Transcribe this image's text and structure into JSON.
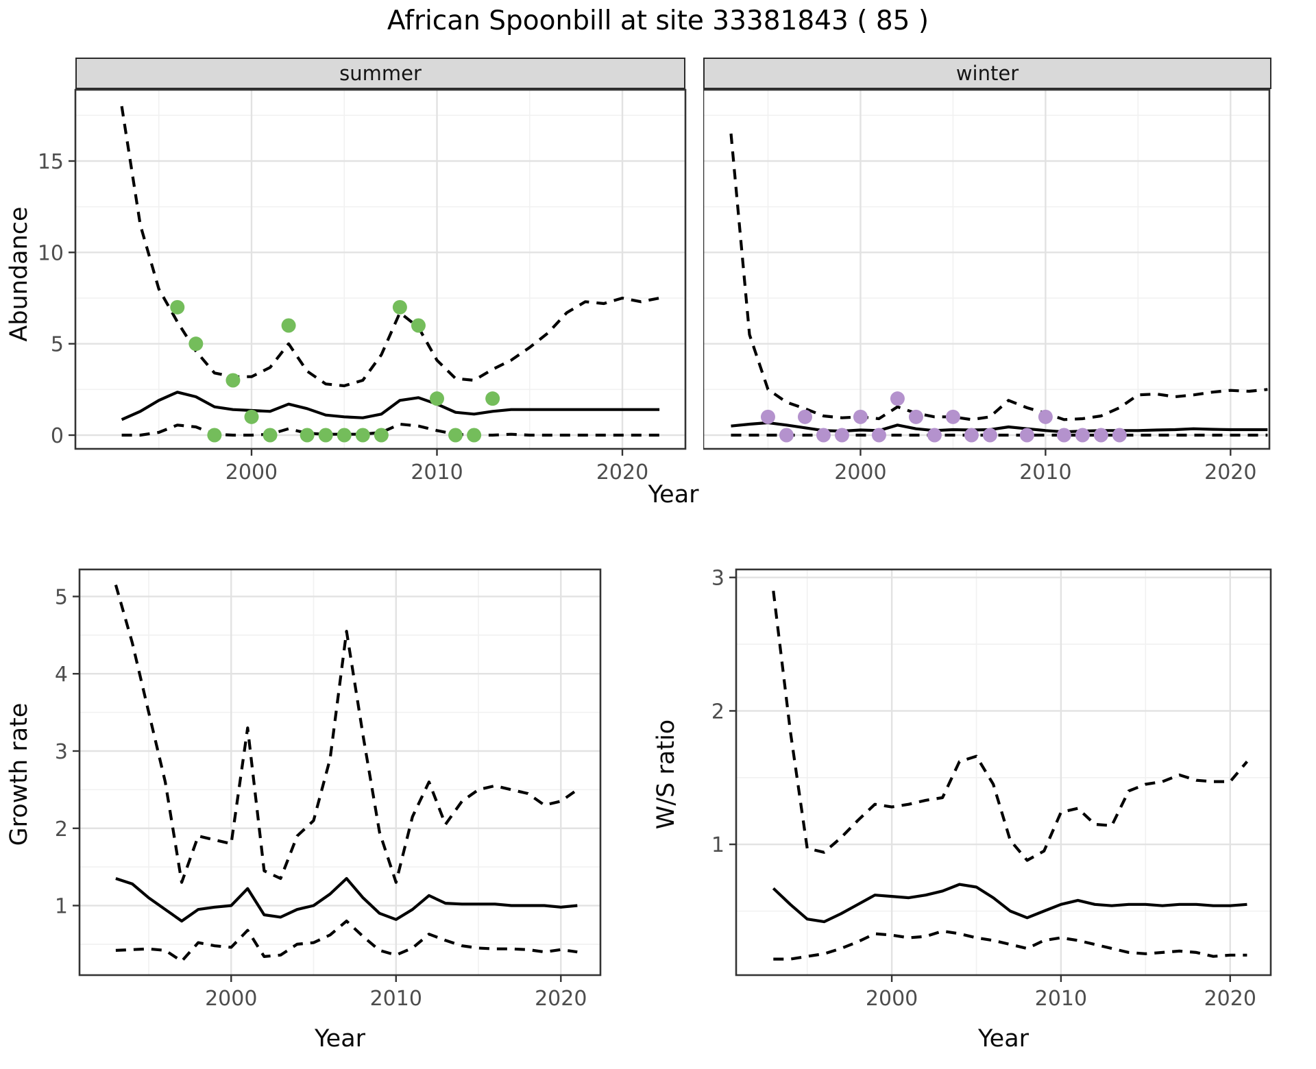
{
  "title": "African Spoonbill at site 33381843 ( 85 )",
  "colors": {
    "observed_summer": "#74bd5b",
    "observed_winter": "#b492cd",
    "line": "#000000",
    "panel_bg": "#ffffff",
    "panel_border": "#333333",
    "strip_bg": "#d9d9d9",
    "strip_text": "#141414",
    "grid_major": "#e2e2e2",
    "grid_minor": "#f1f1f1",
    "tick_text": "#4d4d4d",
    "title_text": "#000000"
  },
  "chart_data": [
    {
      "id": "abundance_summer",
      "type": "line",
      "facet_label": "summer",
      "ylabel": "Abundance",
      "xlabel": "Year",
      "xlim": [
        1990.5,
        2023.4
      ],
      "ylim": [
        -0.75,
        18.9
      ],
      "x_ticks": [
        2000,
        2010,
        2020
      ],
      "x_minor_ticks": [
        1995,
        2005,
        2015
      ],
      "y_ticks": [
        0,
        5,
        10,
        15
      ],
      "y_minor_ticks": [
        2.5,
        7.5,
        12.5,
        17.5
      ],
      "years": [
        1993,
        1994,
        1995,
        1996,
        1997,
        1998,
        1999,
        2000,
        2001,
        2002,
        2003,
        2004,
        2005,
        2006,
        2007,
        2008,
        2009,
        2010,
        2011,
        2012,
        2013,
        2014,
        2015,
        2016,
        2017,
        2018,
        2019,
        2020,
        2021,
        2022
      ],
      "series": [
        {
          "name": "upper_ci",
          "style": "dashed",
          "values": [
            18,
            11.5,
            8,
            6.2,
            4.6,
            3.4,
            3.2,
            3.2,
            3.7,
            5.0,
            3.5,
            2.8,
            2.7,
            3.0,
            4.4,
            6.7,
            5.9,
            4.1,
            3.1,
            3.0,
            3.6,
            4.1,
            4.8,
            5.6,
            6.7,
            7.3,
            7.2,
            7.5,
            7.3,
            7.5
          ]
        },
        {
          "name": "lower_ci",
          "style": "dashed",
          "values": [
            0,
            0,
            0.15,
            0.55,
            0.45,
            0.05,
            0,
            0,
            0.05,
            0.35,
            0.1,
            0.05,
            0.05,
            0.05,
            0.15,
            0.6,
            0.5,
            0.25,
            0.05,
            0,
            0,
            0.05,
            0,
            0,
            0,
            0,
            0,
            0,
            0,
            0
          ]
        },
        {
          "name": "median",
          "style": "solid",
          "values": [
            0.85,
            1.3,
            1.9,
            2.35,
            2.1,
            1.55,
            1.4,
            1.35,
            1.3,
            1.7,
            1.45,
            1.1,
            1.0,
            0.95,
            1.15,
            1.9,
            2.05,
            1.7,
            1.25,
            1.15,
            1.3,
            1.4,
            1.4,
            1.4,
            1.4,
            1.4,
            1.4,
            1.4,
            1.4,
            1.4
          ]
        },
        {
          "name": "observed_counts",
          "style": "points",
          "color": "#74bd5b",
          "x": [
            1996,
            1997,
            1998,
            1999,
            2000,
            2001,
            2002,
            2003,
            2004,
            2005,
            2006,
            2007,
            2008,
            2009,
            2010,
            2011,
            2012,
            2013
          ],
          "values": [
            7,
            5,
            0,
            3,
            1,
            0,
            6,
            0,
            0,
            0,
            0,
            0,
            7,
            6,
            2,
            0,
            0,
            2
          ]
        }
      ]
    },
    {
      "id": "abundance_winter",
      "type": "line",
      "facet_label": "winter",
      "ylabel": "Abundance",
      "xlabel": "Year",
      "xlim": [
        1991.5,
        2022.1
      ],
      "ylim": [
        -0.75,
        18.9
      ],
      "x_ticks": [
        2000,
        2010,
        2020
      ],
      "x_minor_ticks": [
        1995,
        2005,
        2015
      ],
      "y_ticks": [
        0,
        5,
        10,
        15
      ],
      "y_minor_ticks": [
        2.5,
        7.5,
        12.5,
        17.5
      ],
      "years": [
        1993,
        1994,
        1995,
        1996,
        1997,
        1998,
        1999,
        2000,
        2001,
        2002,
        2003,
        2004,
        2005,
        2006,
        2007,
        2008,
        2009,
        2010,
        2011,
        2012,
        2013,
        2014,
        2015,
        2016,
        2017,
        2018,
        2019,
        2020,
        2021,
        2022
      ],
      "series": [
        {
          "name": "upper_ci",
          "style": "dashed",
          "values": [
            16.5,
            5.5,
            2.5,
            1.8,
            1.45,
            1.05,
            0.95,
            1.0,
            0.9,
            1.55,
            1.2,
            1.0,
            1.0,
            0.85,
            1.0,
            1.9,
            1.5,
            1.2,
            0.85,
            0.9,
            1.05,
            1.5,
            2.2,
            2.25,
            2.1,
            2.2,
            2.35,
            2.45,
            2.4,
            2.5
          ]
        },
        {
          "name": "lower_ci",
          "style": "dashed",
          "values": [
            0,
            0,
            0,
            0,
            0,
            0,
            0,
            0,
            0,
            0,
            0,
            0,
            0,
            0,
            0,
            0,
            0,
            0,
            0,
            0,
            0,
            0,
            0,
            0,
            0,
            0,
            0,
            0,
            0,
            0
          ]
        },
        {
          "name": "median",
          "style": "solid",
          "values": [
            0.5,
            0.6,
            0.68,
            0.55,
            0.4,
            0.25,
            0.22,
            0.28,
            0.25,
            0.55,
            0.35,
            0.25,
            0.3,
            0.28,
            0.3,
            0.45,
            0.35,
            0.25,
            0.18,
            0.22,
            0.25,
            0.25,
            0.25,
            0.28,
            0.3,
            0.35,
            0.32,
            0.3,
            0.3,
            0.3
          ]
        },
        {
          "name": "observed_counts",
          "style": "points",
          "color": "#b492cd",
          "x": [
            1995,
            1996,
            1997,
            1998,
            1999,
            2000,
            2001,
            2002,
            2003,
            2004,
            2005,
            2006,
            2007,
            2009,
            2010,
            2011,
            2012,
            2013,
            2014
          ],
          "values": [
            1,
            0,
            1,
            0,
            0,
            1,
            0,
            2,
            1,
            0,
            1,
            0,
            0,
            0,
            1,
            0,
            0,
            0,
            0
          ]
        }
      ]
    },
    {
      "id": "growth_rate",
      "type": "line",
      "facet_label": "",
      "ylabel": "Growth rate",
      "xlabel": "Year",
      "xlim": [
        1990.8,
        2022.4
      ],
      "ylim": [
        0.1,
        5.35
      ],
      "x_ticks": [
        2000,
        2010,
        2020
      ],
      "x_minor_ticks": [
        1995,
        2005,
        2015
      ],
      "y_ticks": [
        1,
        2,
        3,
        4,
        5
      ],
      "y_minor_ticks": [
        0.5,
        1.5,
        2.5,
        3.5,
        4.5
      ],
      "years": [
        1993,
        1994,
        1995,
        1996,
        1997,
        1998,
        1999,
        2000,
        2001,
        2002,
        2003,
        2004,
        2005,
        2006,
        2007,
        2008,
        2009,
        2010,
        2011,
        2012,
        2013,
        2014,
        2015,
        2016,
        2017,
        2018,
        2019,
        2020,
        2021
      ],
      "series": [
        {
          "name": "upper_ci",
          "style": "dashed",
          "values": [
            5.15,
            4.4,
            3.5,
            2.6,
            1.3,
            1.9,
            1.85,
            1.8,
            3.3,
            1.45,
            1.35,
            1.9,
            2.1,
            2.9,
            4.55,
            3.2,
            1.95,
            1.3,
            2.15,
            2.6,
            2.05,
            2.35,
            2.5,
            2.55,
            2.5,
            2.45,
            2.3,
            2.35,
            2.5
          ]
        },
        {
          "name": "lower_ci",
          "style": "dashed",
          "values": [
            0.42,
            0.43,
            0.44,
            0.42,
            0.28,
            0.52,
            0.48,
            0.46,
            0.68,
            0.34,
            0.36,
            0.5,
            0.52,
            0.62,
            0.8,
            0.6,
            0.42,
            0.36,
            0.45,
            0.63,
            0.55,
            0.48,
            0.45,
            0.44,
            0.44,
            0.43,
            0.4,
            0.43,
            0.4
          ]
        },
        {
          "name": "median",
          "style": "solid",
          "values": [
            1.35,
            1.28,
            1.1,
            0.95,
            0.8,
            0.95,
            0.98,
            1.0,
            1.22,
            0.88,
            0.85,
            0.95,
            1.0,
            1.15,
            1.35,
            1.1,
            0.9,
            0.82,
            0.95,
            1.13,
            1.03,
            1.02,
            1.02,
            1.02,
            1.0,
            1.0,
            1.0,
            0.98,
            1.0
          ]
        }
      ]
    },
    {
      "id": "ws_ratio",
      "type": "line",
      "facet_label": "",
      "ylabel": "W/S ratio",
      "xlabel": "Year",
      "xlim": [
        1990.8,
        2022.4
      ],
      "ylim": [
        0.02,
        3.06
      ],
      "x_ticks": [
        2000,
        2010,
        2020
      ],
      "x_minor_ticks": [
        1995,
        2005,
        2015
      ],
      "y_ticks": [
        1,
        2,
        3
      ],
      "y_minor_ticks": [
        0.5,
        1.5,
        2.5
      ],
      "years": [
        1993,
        1994,
        1995,
        1996,
        1997,
        1998,
        1999,
        2000,
        2001,
        2002,
        2003,
        2004,
        2005,
        2006,
        2007,
        2008,
        2009,
        2010,
        2011,
        2012,
        2013,
        2014,
        2015,
        2016,
        2017,
        2018,
        2019,
        2020,
        2021
      ],
      "series": [
        {
          "name": "upper_ci",
          "style": "dashed",
          "values": [
            2.9,
            1.85,
            0.97,
            0.94,
            1.05,
            1.18,
            1.3,
            1.28,
            1.3,
            1.33,
            1.35,
            1.62,
            1.66,
            1.45,
            1.03,
            0.88,
            0.95,
            1.24,
            1.27,
            1.15,
            1.14,
            1.4,
            1.45,
            1.47,
            1.52,
            1.48,
            1.47,
            1.47,
            1.62
          ]
        },
        {
          "name": "lower_ci",
          "style": "dashed",
          "values": [
            0.14,
            0.14,
            0.16,
            0.18,
            0.22,
            0.27,
            0.33,
            0.32,
            0.3,
            0.31,
            0.35,
            0.33,
            0.3,
            0.28,
            0.25,
            0.22,
            0.28,
            0.3,
            0.28,
            0.25,
            0.22,
            0.19,
            0.18,
            0.19,
            0.2,
            0.19,
            0.16,
            0.17,
            0.17
          ]
        },
        {
          "name": "median",
          "style": "solid",
          "values": [
            0.67,
            0.55,
            0.44,
            0.42,
            0.48,
            0.55,
            0.62,
            0.61,
            0.6,
            0.62,
            0.65,
            0.7,
            0.68,
            0.6,
            0.5,
            0.45,
            0.5,
            0.55,
            0.58,
            0.55,
            0.54,
            0.55,
            0.55,
            0.54,
            0.55,
            0.55,
            0.54,
            0.54,
            0.55
          ]
        }
      ]
    }
  ]
}
